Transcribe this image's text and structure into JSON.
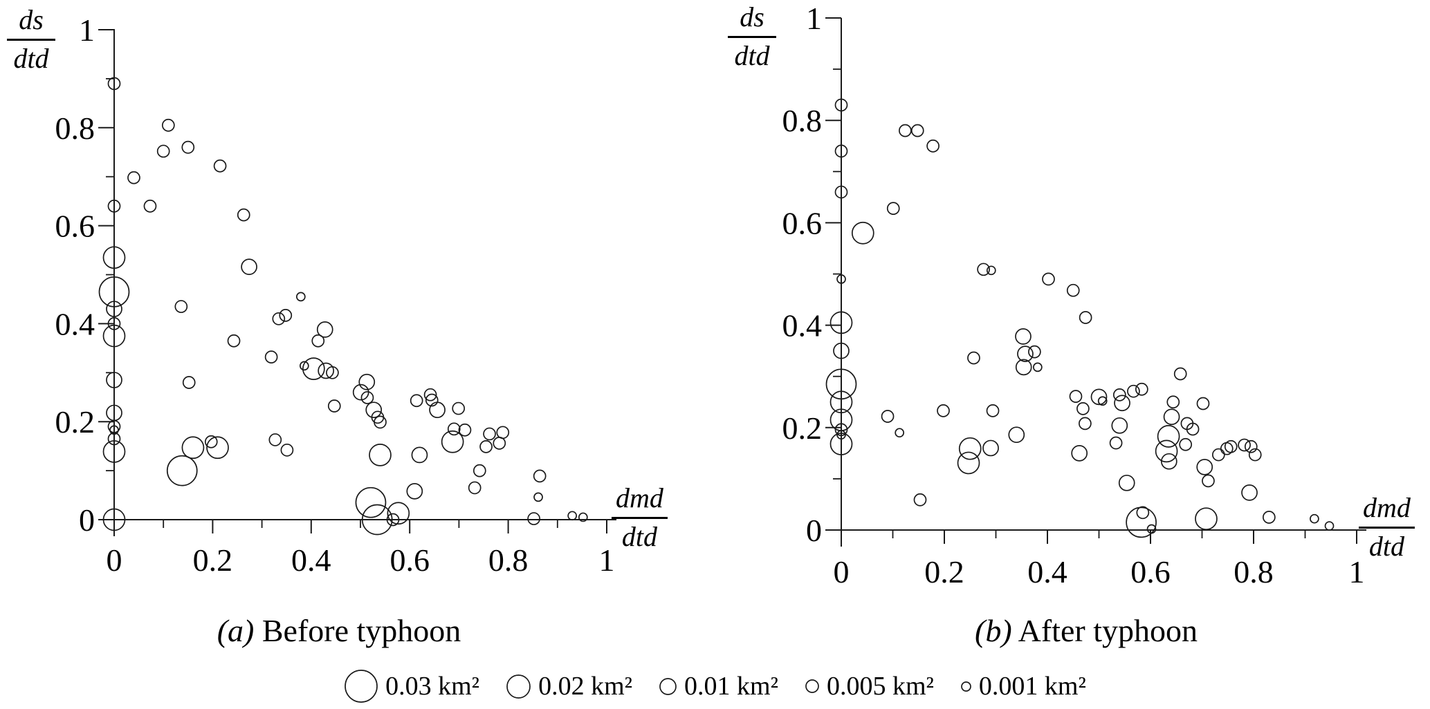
{
  "figure": {
    "background_color": "#ffffff",
    "axis_color": "#1a1a1a",
    "bubble_stroke_color": "#1a1a1a"
  },
  "axis_labels": {
    "y_fraction": {
      "numerator": "ds",
      "denominator": "dtd"
    },
    "x_fraction": {
      "numerator": "dmd",
      "denominator": "dtd"
    }
  },
  "captions": {
    "a": {
      "prefix": "(a)",
      "text": " Before typhoon"
    },
    "b": {
      "prefix": "(b)",
      "text": " After typhoon"
    }
  },
  "legend": {
    "items": [
      {
        "label": "0.03 km²",
        "area_km2": 0.03
      },
      {
        "label": "0.02 km²",
        "area_km2": 0.02
      },
      {
        "label": "0.01 km²",
        "area_km2": 0.01
      },
      {
        "label": "0.005 km²",
        "area_km2": 0.005
      },
      {
        "label": "0.001 km²",
        "area_km2": 0.001
      }
    ]
  },
  "chart_data": [
    {
      "id": "a",
      "type": "scatter",
      "subtype": "bubble",
      "title": "(a) Before typhoon",
      "xlabel": "dmd/dtd",
      "ylabel": "ds/dtd",
      "xlim": [
        0,
        1
      ],
      "ylim": [
        0,
        1
      ],
      "grid": false,
      "x_tick_labels": [
        "0",
        "0.2",
        "0.4",
        "0.6",
        "0.8",
        "1"
      ],
      "x_tick_values": [
        0,
        0.2,
        0.4,
        0.6,
        0.8,
        1
      ],
      "y_tick_labels": [
        "0",
        "0.2",
        "0.4",
        "0.6",
        "0.8",
        "1"
      ],
      "y_tick_values": [
        0,
        0.2,
        0.4,
        0.6,
        0.8,
        1
      ],
      "minor_tick_values": [
        0.1,
        0.3,
        0.5,
        0.7,
        0.9
      ],
      "size_unit": "km2",
      "points": [
        [
          0.0,
          0.89,
          0.005
        ],
        [
          0.11,
          0.805,
          0.005
        ],
        [
          0.1,
          0.752,
          0.005
        ],
        [
          0.15,
          0.76,
          0.005
        ],
        [
          0.215,
          0.722,
          0.005
        ],
        [
          0.04,
          0.698,
          0.005
        ],
        [
          0.0,
          0.64,
          0.005
        ],
        [
          0.073,
          0.64,
          0.005
        ],
        [
          0.263,
          0.622,
          0.005
        ],
        [
          0.274,
          0.516,
          0.01
        ],
        [
          0.0,
          0.535,
          0.02
        ],
        [
          0.0,
          0.465,
          0.03
        ],
        [
          0.0,
          0.43,
          0.01
        ],
        [
          0.0,
          0.4,
          0.005
        ],
        [
          0.0,
          0.375,
          0.02
        ],
        [
          0.136,
          0.435,
          0.005
        ],
        [
          0.243,
          0.365,
          0.005
        ],
        [
          0.379,
          0.455,
          0.001
        ],
        [
          0.348,
          0.417,
          0.005
        ],
        [
          0.334,
          0.41,
          0.005
        ],
        [
          0.428,
          0.388,
          0.01
        ],
        [
          0.414,
          0.365,
          0.005
        ],
        [
          0.319,
          0.332,
          0.005
        ],
        [
          0.386,
          0.314,
          0.001
        ],
        [
          0.405,
          0.308,
          0.02
        ],
        [
          0.43,
          0.304,
          0.01
        ],
        [
          0.443,
          0.3,
          0.005
        ],
        [
          0.513,
          0.281,
          0.01
        ],
        [
          0.501,
          0.26,
          0.01
        ],
        [
          0.514,
          0.249,
          0.005
        ],
        [
          0.447,
          0.232,
          0.005
        ],
        [
          0.527,
          0.224,
          0.01
        ],
        [
          0.535,
          0.209,
          0.005
        ],
        [
          0.54,
          0.199,
          0.005
        ],
        [
          0.614,
          0.243,
          0.005
        ],
        [
          0.642,
          0.255,
          0.005
        ],
        [
          0.645,
          0.244,
          0.005
        ],
        [
          0.656,
          0.224,
          0.01
        ],
        [
          0.699,
          0.227,
          0.005
        ],
        [
          0.69,
          0.185,
          0.005
        ],
        [
          0.712,
          0.183,
          0.005
        ],
        [
          0.687,
          0.159,
          0.02
        ],
        [
          0.762,
          0.175,
          0.005
        ],
        [
          0.789,
          0.178,
          0.005
        ],
        [
          0.755,
          0.149,
          0.005
        ],
        [
          0.782,
          0.156,
          0.005
        ],
        [
          0.742,
          0.1,
          0.005
        ],
        [
          0.732,
          0.065,
          0.005
        ],
        [
          0.864,
          0.089,
          0.005
        ],
        [
          0.861,
          0.046,
          0.001
        ],
        [
          0.852,
          0.002,
          0.005
        ],
        [
          0.93,
          0.008,
          0.001
        ],
        [
          0.952,
          0.005,
          0.001
        ],
        [
          0.0,
          0.285,
          0.01
        ],
        [
          0.0,
          0.218,
          0.01
        ],
        [
          0.0,
          0.19,
          0.005
        ],
        [
          0.0,
          0.183,
          0.001
        ],
        [
          0.0,
          0.165,
          0.005
        ],
        [
          0.0,
          0.139,
          0.02
        ],
        [
          0.0,
          0.0,
          0.02
        ],
        [
          0.152,
          0.28,
          0.005
        ],
        [
          0.138,
          0.1,
          0.03
        ],
        [
          0.16,
          0.147,
          0.02
        ],
        [
          0.197,
          0.159,
          0.005
        ],
        [
          0.21,
          0.147,
          0.02
        ],
        [
          0.327,
          0.163,
          0.005
        ],
        [
          0.351,
          0.142,
          0.005
        ],
        [
          0.54,
          0.132,
          0.02
        ],
        [
          0.62,
          0.132,
          0.01
        ],
        [
          0.61,
          0.058,
          0.01
        ],
        [
          0.521,
          0.035,
          0.03
        ],
        [
          0.534,
          0.0,
          0.03
        ],
        [
          0.577,
          0.013,
          0.02
        ],
        [
          0.566,
          0.0,
          0.005
        ]
      ]
    },
    {
      "id": "b",
      "type": "scatter",
      "subtype": "bubble",
      "title": "(b) After typhoon",
      "xlabel": "dmd/dtd",
      "ylabel": "ds/dtd",
      "xlim": [
        0,
        1
      ],
      "ylim": [
        0,
        1
      ],
      "grid": false,
      "x_tick_labels": [
        "0",
        "0.2",
        "0.4",
        "0.6",
        "0.8",
        "1"
      ],
      "x_tick_values": [
        0,
        0.2,
        0.4,
        0.6,
        0.8,
        1
      ],
      "y_tick_labels": [
        "0",
        "0.2",
        "0.4",
        "0.6",
        "0.8",
        "1"
      ],
      "y_tick_values": [
        0,
        0.2,
        0.4,
        0.6,
        0.8,
        1
      ],
      "minor_tick_values": [
        0.1,
        0.3,
        0.5,
        0.7,
        0.9
      ],
      "size_unit": "km2",
      "points": [
        [
          0.0,
          0.83,
          0.005
        ],
        [
          0.0,
          0.74,
          0.005
        ],
        [
          0.0,
          0.66,
          0.005
        ],
        [
          0.124,
          0.78,
          0.005
        ],
        [
          0.148,
          0.78,
          0.005
        ],
        [
          0.178,
          0.75,
          0.005
        ],
        [
          0.101,
          0.628,
          0.005
        ],
        [
          0.042,
          0.58,
          0.02
        ],
        [
          0.0,
          0.49,
          0.001
        ],
        [
          0.0,
          0.405,
          0.02
        ],
        [
          0.0,
          0.35,
          0.01
        ],
        [
          0.0,
          0.285,
          0.03
        ],
        [
          0.0,
          0.25,
          0.02
        ],
        [
          0.0,
          0.215,
          0.02
        ],
        [
          0.0,
          0.196,
          0.005
        ],
        [
          0.0,
          0.186,
          0.001
        ],
        [
          0.0,
          0.168,
          0.02
        ],
        [
          0.09,
          0.222,
          0.005
        ],
        [
          0.113,
          0.19,
          0.001
        ],
        [
          0.153,
          0.059,
          0.005
        ],
        [
          0.198,
          0.233,
          0.005
        ],
        [
          0.294,
          0.233,
          0.005
        ],
        [
          0.25,
          0.159,
          0.02
        ],
        [
          0.247,
          0.131,
          0.02
        ],
        [
          0.29,
          0.16,
          0.01
        ],
        [
          0.34,
          0.186,
          0.01
        ],
        [
          0.276,
          0.509,
          0.005
        ],
        [
          0.291,
          0.507,
          0.001
        ],
        [
          0.402,
          0.49,
          0.005
        ],
        [
          0.45,
          0.468,
          0.005
        ],
        [
          0.474,
          0.415,
          0.005
        ],
        [
          0.353,
          0.378,
          0.01
        ],
        [
          0.257,
          0.336,
          0.005
        ],
        [
          0.357,
          0.344,
          0.01
        ],
        [
          0.375,
          0.348,
          0.005
        ],
        [
          0.354,
          0.318,
          0.01
        ],
        [
          0.381,
          0.318,
          0.001
        ],
        [
          0.455,
          0.261,
          0.005
        ],
        [
          0.469,
          0.237,
          0.005
        ],
        [
          0.5,
          0.26,
          0.01
        ],
        [
          0.507,
          0.252,
          0.001
        ],
        [
          0.54,
          0.264,
          0.005
        ],
        [
          0.545,
          0.248,
          0.01
        ],
        [
          0.473,
          0.208,
          0.005
        ],
        [
          0.54,
          0.204,
          0.01
        ],
        [
          0.533,
          0.17,
          0.005
        ],
        [
          0.462,
          0.15,
          0.01
        ],
        [
          0.567,
          0.271,
          0.005
        ],
        [
          0.583,
          0.275,
          0.005
        ],
        [
          0.658,
          0.305,
          0.005
        ],
        [
          0.644,
          0.25,
          0.005
        ],
        [
          0.641,
          0.221,
          0.01
        ],
        [
          0.671,
          0.208,
          0.005
        ],
        [
          0.682,
          0.197,
          0.005
        ],
        [
          0.635,
          0.183,
          0.02
        ],
        [
          0.631,
          0.154,
          0.02
        ],
        [
          0.636,
          0.134,
          0.01
        ],
        [
          0.668,
          0.167,
          0.005
        ],
        [
          0.702,
          0.247,
          0.005
        ],
        [
          0.705,
          0.123,
          0.01
        ],
        [
          0.712,
          0.096,
          0.005
        ],
        [
          0.732,
          0.147,
          0.005
        ],
        [
          0.748,
          0.159,
          0.005
        ],
        [
          0.756,
          0.163,
          0.005
        ],
        [
          0.782,
          0.166,
          0.005
        ],
        [
          0.795,
          0.163,
          0.005
        ],
        [
          0.803,
          0.147,
          0.005
        ],
        [
          0.792,
          0.073,
          0.01
        ],
        [
          0.554,
          0.092,
          0.01
        ],
        [
          0.582,
          0.015,
          0.03
        ],
        [
          0.585,
          0.034,
          0.005
        ],
        [
          0.602,
          0.002,
          0.001
        ],
        [
          0.708,
          0.022,
          0.02
        ],
        [
          0.83,
          0.025,
          0.005
        ],
        [
          0.918,
          0.022,
          0.001
        ],
        [
          0.947,
          0.008,
          0.001
        ]
      ]
    }
  ]
}
